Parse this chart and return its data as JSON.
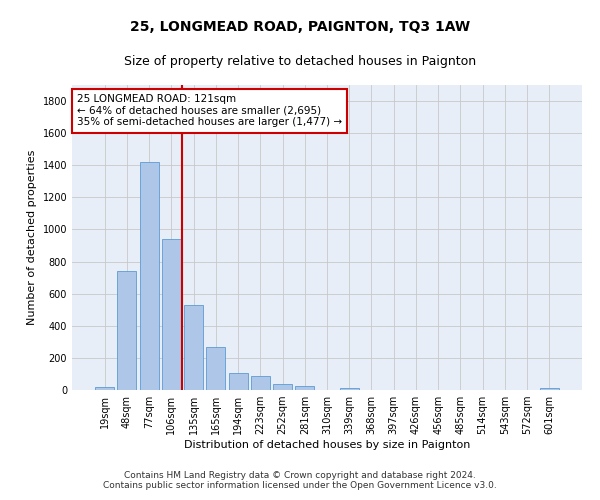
{
  "title": "25, LONGMEAD ROAD, PAIGNTON, TQ3 1AW",
  "subtitle": "Size of property relative to detached houses in Paignton",
  "xlabel": "Distribution of detached houses by size in Paignton",
  "ylabel": "Number of detached properties",
  "bar_color": "#aec6e8",
  "bar_edgecolor": "#5b9bd5",
  "categories": [
    "19sqm",
    "48sqm",
    "77sqm",
    "106sqm",
    "135sqm",
    "165sqm",
    "194sqm",
    "223sqm",
    "252sqm",
    "281sqm",
    "310sqm",
    "339sqm",
    "368sqm",
    "397sqm",
    "426sqm",
    "456sqm",
    "485sqm",
    "514sqm",
    "543sqm",
    "572sqm",
    "601sqm"
  ],
  "values": [
    20,
    740,
    1420,
    940,
    530,
    265,
    105,
    90,
    37,
    27,
    0,
    15,
    0,
    0,
    0,
    0,
    0,
    0,
    0,
    0,
    15
  ],
  "ylim": [
    0,
    1900
  ],
  "yticks": [
    0,
    200,
    400,
    600,
    800,
    1000,
    1200,
    1400,
    1600,
    1800
  ],
  "property_line_x": 3.5,
  "annotation_text": "25 LONGMEAD ROAD: 121sqm\n← 64% of detached houses are smaller (2,695)\n35% of semi-detached houses are larger (1,477) →",
  "annotation_box_color": "#ffffff",
  "annotation_border_color": "#cc0000",
  "footer1": "Contains HM Land Registry data © Crown copyright and database right 2024.",
  "footer2": "Contains public sector information licensed under the Open Government Licence v3.0.",
  "background_color": "#e8eef7",
  "grid_color": "#c8c8c8",
  "line_color": "#cc0000",
  "title_fontsize": 10,
  "subtitle_fontsize": 9,
  "axis_label_fontsize": 8,
  "tick_fontsize": 7,
  "footer_fontsize": 6.5,
  "annotation_fontsize": 7.5
}
